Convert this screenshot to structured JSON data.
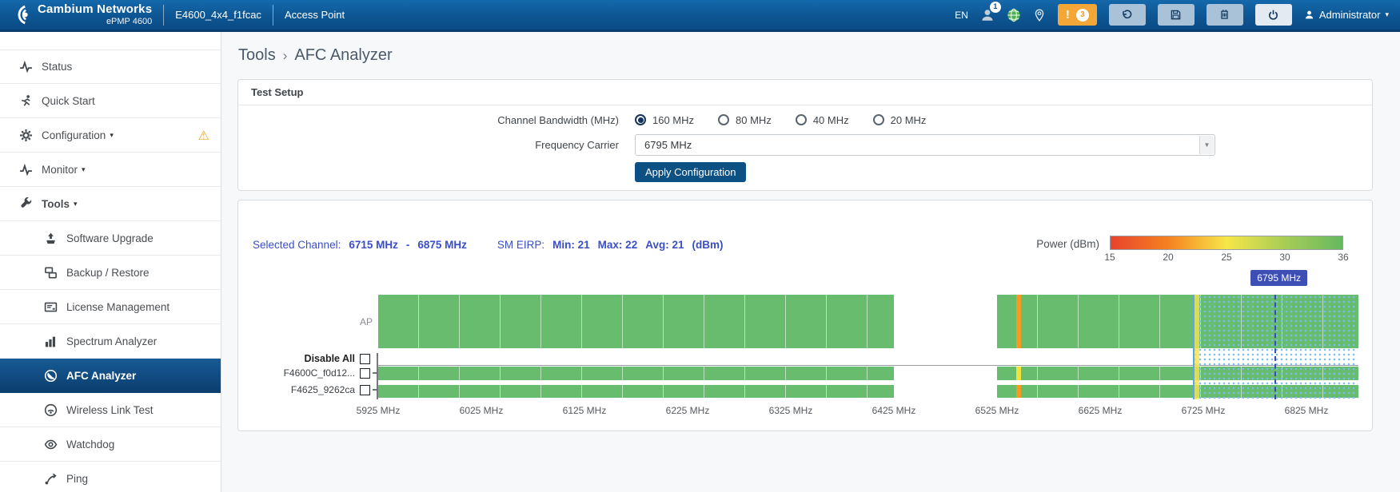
{
  "header": {
    "brand_name": "Cambium Networks",
    "brand_model": "ePMP 4600",
    "device_name": "E4600_4x4_f1fcac",
    "device_mode": "Access Point",
    "language": "EN",
    "session_badge": "1",
    "alert_symbol": "!",
    "alert_badge": "3",
    "user_menu": "Administrator"
  },
  "sidebar": {
    "items": [
      {
        "label": "Status",
        "icon": "status-icon",
        "level": 1
      },
      {
        "label": "Quick Start",
        "icon": "quick-start-icon",
        "level": 1
      },
      {
        "label": "Configuration",
        "icon": "configuration-icon",
        "level": 1,
        "caret": true,
        "warning": true
      },
      {
        "label": "Monitor",
        "icon": "monitor-icon",
        "level": 1,
        "caret": true
      },
      {
        "label": "Tools",
        "icon": "tools-icon",
        "level": 1,
        "caret": true,
        "bold": true
      },
      {
        "label": "Software Upgrade",
        "icon": "software-upgrade-icon",
        "level": 2
      },
      {
        "label": "Backup / Restore",
        "icon": "backup-restore-icon",
        "level": 2
      },
      {
        "label": "License Management",
        "icon": "license-management-icon",
        "level": 2
      },
      {
        "label": "Spectrum Analyzer",
        "icon": "spectrum-analyzer-icon",
        "level": 2
      },
      {
        "label": "AFC Analyzer",
        "icon": "afc-analyzer-icon",
        "level": 2,
        "active": true
      },
      {
        "label": "Wireless Link Test",
        "icon": "wireless-link-test-icon",
        "level": 2
      },
      {
        "label": "Watchdog",
        "icon": "watchdog-icon",
        "level": 2
      },
      {
        "label": "Ping",
        "icon": "ping-icon",
        "level": 2
      }
    ]
  },
  "breadcrumb": {
    "section": "Tools",
    "separator": "›",
    "page": "AFC Analyzer"
  },
  "test_setup": {
    "title": "Test Setup",
    "channel_bandwidth_label": "Channel Bandwidth (MHz)",
    "bandwidth_options": [
      {
        "label": "160 MHz",
        "selected": true
      },
      {
        "label": "80 MHz",
        "selected": false
      },
      {
        "label": "40 MHz",
        "selected": false
      },
      {
        "label": "20 MHz",
        "selected": false
      }
    ],
    "frequency_carrier_label": "Frequency Carrier",
    "frequency_carrier_value": "6795 MHz",
    "apply_button": "Apply Configuration"
  },
  "results_bar": {
    "selected_channel_label": "Selected Channel:",
    "channel_start": "6715 MHz",
    "channel_dash": "-",
    "channel_end": "6875 MHz",
    "sm_eirp_label": "SM EIRP:",
    "min": "Min: 21",
    "max": "Max: 22",
    "avg": "Avg: 21",
    "units": "(dBm)"
  },
  "chart_data": {
    "type": "bar",
    "x_unit": "MHz",
    "x_range": [
      5925,
      6875
    ],
    "x_ticks": [
      5925,
      6025,
      6125,
      6225,
      6325,
      6425,
      6525,
      6625,
      6725,
      6825
    ],
    "x_tick_suffix": " MHz",
    "power_scale": {
      "label": "Power (dBm)",
      "ticks": [
        15,
        20,
        25,
        30,
        36
      ],
      "colors": [
        "#e8432e",
        "#f58220",
        "#f6e649",
        "#a8cd56",
        "#66b861"
      ]
    },
    "bar_color": "#68bc6d",
    "rows": [
      {
        "label": "AP",
        "kind": "bar",
        "checkbox": false,
        "segments": [
          [
            5925,
            6425
          ],
          [
            6525,
            6875
          ]
        ],
        "markers": [
          {
            "freq": 6546,
            "width": 5,
            "color": "#f59a23"
          }
        ]
      },
      {
        "label": "Disable All",
        "kind": "checkbox-row",
        "checkbox": true,
        "segments": [],
        "markers": []
      },
      {
        "label": "F4600C_f0d12...",
        "kind": "bar",
        "checkbox": true,
        "segments": [
          [
            5925,
            6425
          ],
          [
            6525,
            6875
          ]
        ],
        "markers": [
          {
            "freq": 6546,
            "width": 5,
            "color": "#f2e23e"
          }
        ]
      },
      {
        "label": "F4625_9262ca",
        "kind": "bar",
        "checkbox": true,
        "segments": [
          [
            5925,
            6425
          ],
          [
            6525,
            6875
          ]
        ],
        "markers": [
          {
            "freq": 6546,
            "width": 5,
            "color": "#f59a23"
          }
        ]
      }
    ],
    "selection": {
      "start": 6715,
      "end": 6875,
      "center": 6795,
      "center_label": "6795 MHz"
    }
  }
}
